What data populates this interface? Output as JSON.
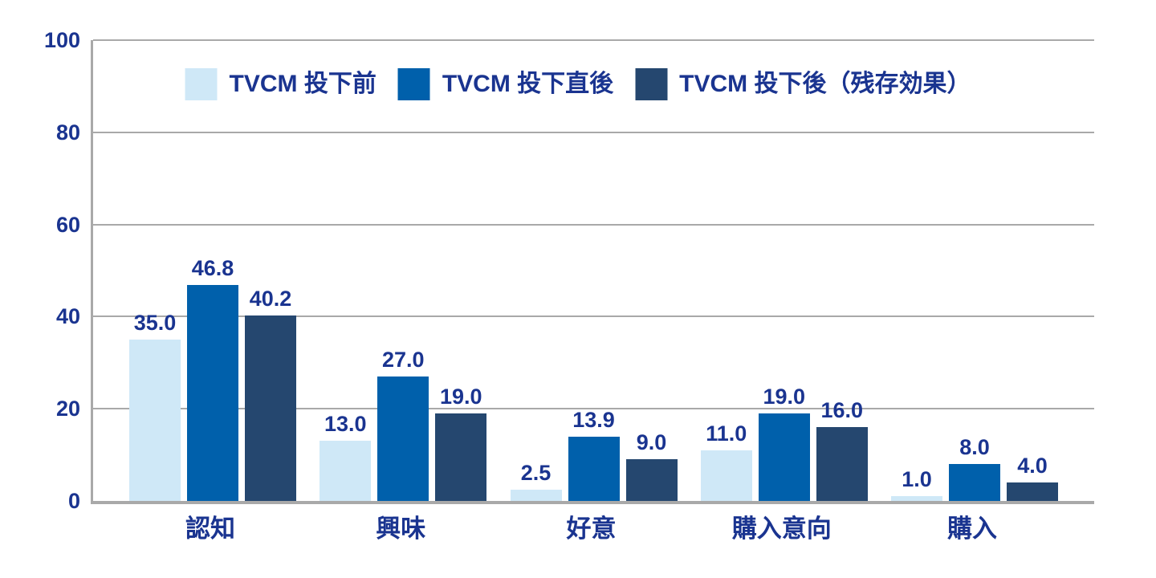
{
  "colors": {
    "label_text": "#1a3490",
    "grid": "#a9a9a9",
    "series_1": "#cfe8f7",
    "series_2": "#0060ab",
    "series_3": "#25476f"
  },
  "chart_data": {
    "type": "bar",
    "title": "",
    "xlabel": "",
    "ylabel": "",
    "ylim": [
      0,
      100
    ],
    "y_ticks": [
      0,
      20,
      40,
      60,
      80,
      100
    ],
    "grid": true,
    "legend_position": "top-center",
    "categories": [
      "認知",
      "興味",
      "好意",
      "購入意向",
      "購入"
    ],
    "series": [
      {
        "name": "TVCM 投下前",
        "color": "#cfe8f7",
        "values": [
          35.0,
          13.0,
          2.5,
          11.0,
          1.0
        ],
        "labels": [
          "35.0",
          "13.0",
          "2.5",
          "11.0",
          "1.0"
        ]
      },
      {
        "name": "TVCM 投下直後",
        "color": "#0060ab",
        "values": [
          46.8,
          27.0,
          13.9,
          19.0,
          8.0
        ],
        "labels": [
          "46.8",
          "27.0",
          "13.9",
          "19.0",
          "8.0"
        ]
      },
      {
        "name": "TVCM 投下後（残存効果）",
        "color": "#25476f",
        "values": [
          40.2,
          19.0,
          9.0,
          16.0,
          4.0
        ],
        "labels": [
          "40.2",
          "19.0",
          "9.0",
          "16.0",
          "4.0"
        ]
      }
    ]
  }
}
